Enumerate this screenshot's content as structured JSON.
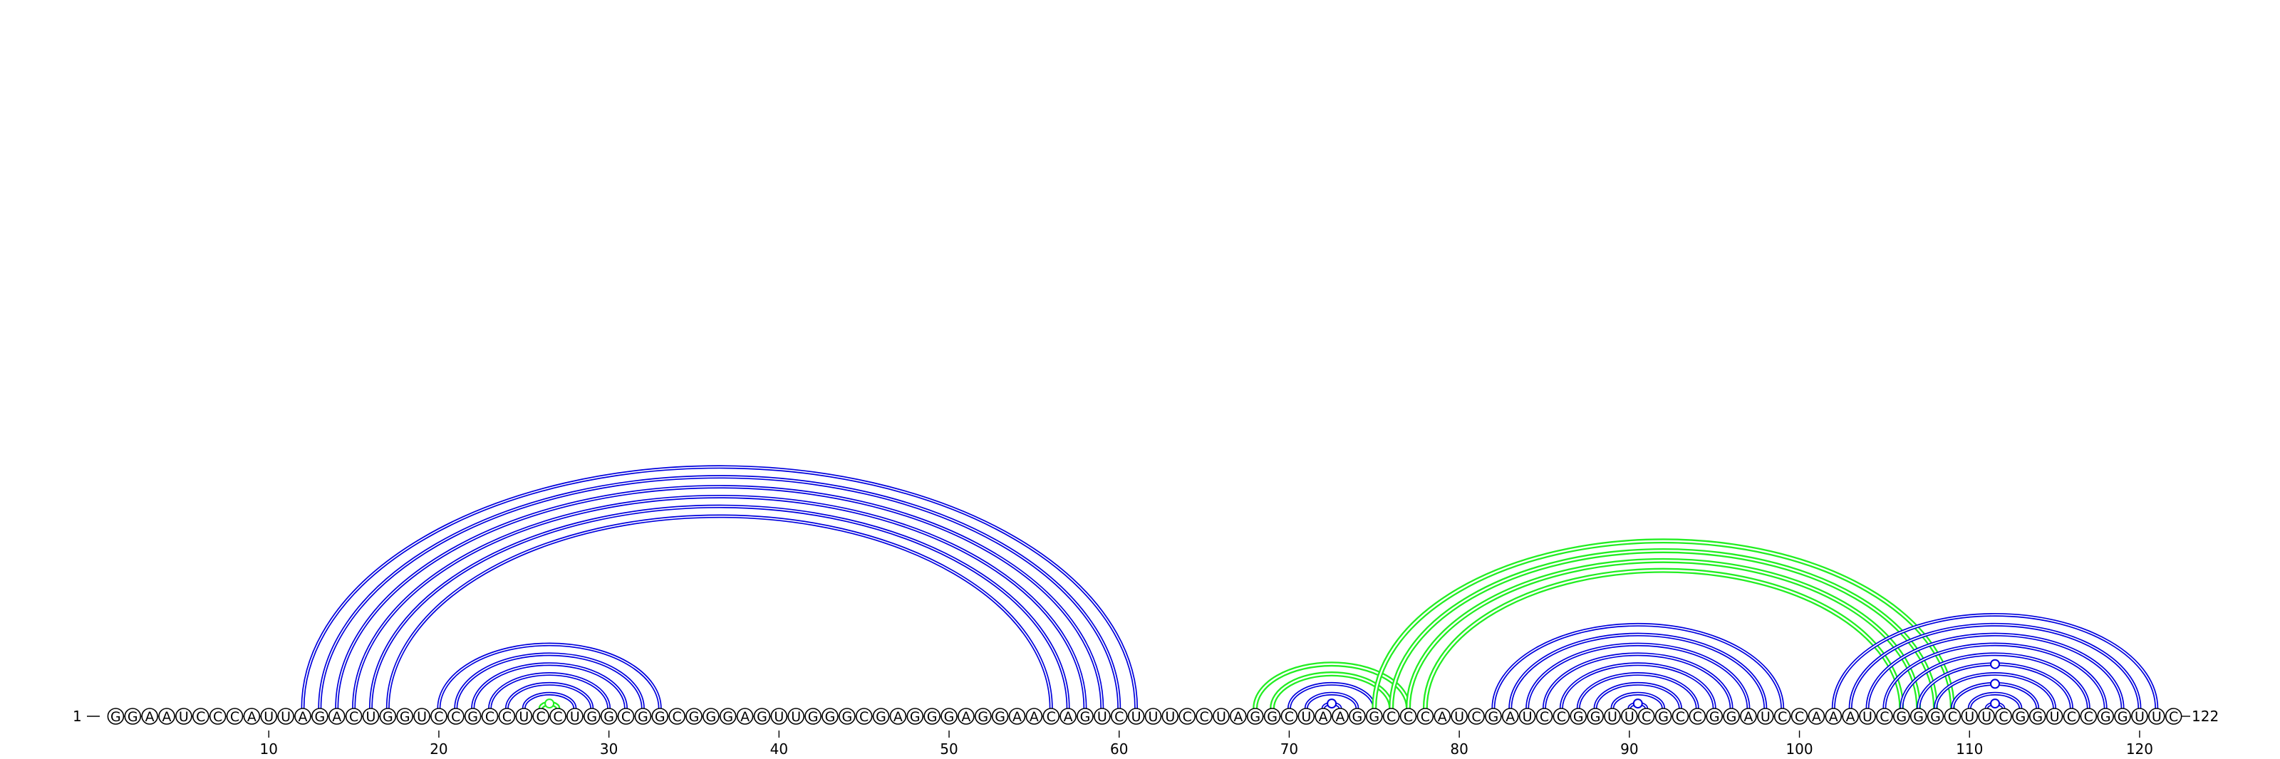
{
  "rna": {
    "sequence": "GGAAUCCCAUUAGACUGGUCCGCCUCCUGGCGGCGGGAGUUGGGCGAGGGAGGAACAGUCUUUCCUAGGCUAAGGCCCAUCGAUCCGGUUCGCCGGAUCCAAAUCGGGCUUCGGUCCGGUUC",
    "start_label": "1",
    "end_label": "122",
    "tick_labels": [
      "10",
      "20",
      "30",
      "40",
      "50",
      "60",
      "70",
      "80",
      "90",
      "100",
      "110",
      "120"
    ],
    "tick_positions": [
      10,
      20,
      30,
      40,
      50,
      60,
      70,
      80,
      90,
      100,
      110,
      120
    ]
  },
  "colors": {
    "primary": "#0000dd",
    "secondary": "#22ee22",
    "text": "#000000"
  },
  "chart_data": {
    "type": "arc-diagram",
    "length": 122,
    "helices": [
      {
        "color": "primary",
        "pairs": [
          [
            12,
            61
          ],
          [
            13,
            60
          ],
          [
            14,
            59
          ],
          [
            15,
            58
          ],
          [
            16,
            57
          ],
          [
            17,
            56
          ]
        ]
      },
      {
        "color": "primary",
        "pairs": [
          [
            20,
            33
          ],
          [
            21,
            32
          ],
          [
            22,
            31
          ],
          [
            23,
            30
          ],
          [
            24,
            29
          ],
          [
            25,
            28
          ]
        ]
      },
      {
        "color": "secondary",
        "pairs": [
          [
            26,
            27
          ]
        ],
        "marker": "filled"
      },
      {
        "color": "secondary",
        "pairs": [
          [
            68,
            77
          ],
          [
            69,
            76
          ]
        ]
      },
      {
        "color": "primary",
        "pairs": [
          [
            70,
            75
          ],
          [
            71,
            74
          ],
          [
            72,
            73
          ]
        ],
        "marker": "open"
      },
      {
        "color": "secondary",
        "pairs": [
          [
            75,
            109
          ],
          [
            76,
            108
          ],
          [
            77,
            107
          ],
          [
            78,
            106
          ]
        ]
      },
      {
        "color": "primary",
        "pairs": [
          [
            82,
            99
          ],
          [
            83,
            98
          ],
          [
            84,
            97
          ],
          [
            85,
            96
          ],
          [
            86,
            95
          ],
          [
            87,
            94
          ],
          [
            88,
            93
          ],
          [
            89,
            92
          ],
          [
            90,
            91
          ]
        ],
        "marker": "open"
      },
      {
        "color": "primary",
        "pairs": [
          [
            102,
            121
          ],
          [
            103,
            120
          ],
          [
            104,
            119
          ],
          [
            105,
            118
          ],
          [
            106,
            117
          ],
          [
            107,
            116
          ],
          [
            108,
            115
          ],
          [
            109,
            114
          ],
          [
            110,
            113
          ],
          [
            111,
            112
          ]
        ],
        "marker": "open",
        "extra_markers": [
          [
            109,
            114
          ],
          [
            107,
            116
          ]
        ]
      }
    ]
  }
}
